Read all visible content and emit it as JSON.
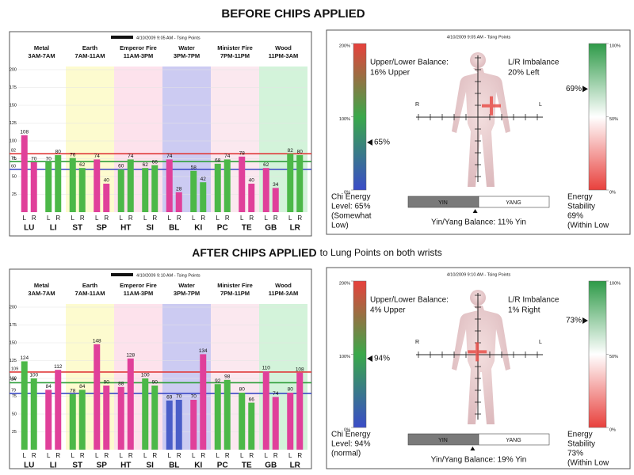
{
  "headings": [
    {
      "text": "BEFORE CHIPS APPLIED"
    },
    {
      "text": "AFTER CHIPS  APPLIED",
      "note": "to Lung Points on both wrists"
    }
  ],
  "chart_data": [
    {
      "type": "bar",
      "subtitle": "4/10/2009 9:05 AM - Tsing Points",
      "bands": [
        {
          "name": "Metal",
          "time": "3AM-7AM",
          "color": "#ffffff"
        },
        {
          "name": "Earth",
          "time": "7AM-11AM",
          "color": "#fdfbcf"
        },
        {
          "name": "Emperor Fire",
          "time": "11AM-3PM",
          "color": "#fde2ec"
        },
        {
          "name": "Water",
          "time": "3PM-7PM",
          "color": "#cccbf2"
        },
        {
          "name": "Minister Fire",
          "time": "7PM-11PM",
          "color": "#fbe8ef"
        },
        {
          "name": "Wood",
          "time": "11PM-3AM",
          "color": "#d3f3da"
        }
      ],
      "categories": [
        "LU",
        "LI",
        "ST",
        "SP",
        "HT",
        "SI",
        "BL",
        "KI",
        "PC",
        "TE",
        "GB",
        "LR"
      ],
      "series": [
        {
          "name": "L",
          "values": [
            108,
            70,
            76,
            74,
            60,
            62,
            74,
            58,
            68,
            78,
            62,
            82
          ],
          "colors": [
            "#e0409a",
            "#4cb848",
            "#4cb848",
            "#e0409a",
            "#4cb848",
            "#4cb848",
            "#e0409a",
            "#4cb848",
            "#4cb848",
            "#e0409a",
            "#e0409a",
            "#4cb848"
          ]
        },
        {
          "name": "R",
          "values": [
            70,
            80,
            62,
            40,
            74,
            66,
            28,
            42,
            74,
            40,
            34,
            80
          ],
          "colors": [
            "#e0409a",
            "#4cb848",
            "#4cb848",
            "#e0409a",
            "#4cb848",
            "#4cb848",
            "#e0409a",
            "#4cb848",
            "#4cb848",
            "#e0409a",
            "#e0409a",
            "#4cb848"
          ]
        }
      ],
      "reference_lines": [
        {
          "value": 82,
          "color": "#e03a3a"
        },
        {
          "value": 71,
          "color": "#2e9e3a"
        },
        {
          "value": 60,
          "color": "#3a48c4"
        }
      ],
      "ylim": [
        0,
        200
      ],
      "yticks": [
        25,
        50,
        75,
        100,
        125,
        150,
        175,
        200
      ],
      "grid": true
    },
    {
      "type": "bar",
      "subtitle": "4/10/2009 9:10 AM - Tsing Points",
      "bands": [
        {
          "name": "Metal",
          "time": "3AM-7AM",
          "color": "#ffffff"
        },
        {
          "name": "Earth",
          "time": "7AM-11AM",
          "color": "#fdfbcf"
        },
        {
          "name": "Emperor Fire",
          "time": "11AM-3PM",
          "color": "#fde2ec"
        },
        {
          "name": "Water",
          "time": "3PM-7PM",
          "color": "#cccbf2"
        },
        {
          "name": "Minister Fire",
          "time": "7PM-11PM",
          "color": "#fbe8ef"
        },
        {
          "name": "Wood",
          "time": "11PM-3AM",
          "color": "#d3f3da"
        }
      ],
      "categories": [
        "LU",
        "LI",
        "ST",
        "SP",
        "HT",
        "SI",
        "BL",
        "KI",
        "PC",
        "TE",
        "GB",
        "LR"
      ],
      "series": [
        {
          "name": "L",
          "values": [
            124,
            84,
            78,
            148,
            88,
            100,
            69,
            70,
            92,
            80,
            110,
            80
          ],
          "colors": [
            "#4cb848",
            "#e0409a",
            "#4cb848",
            "#e0409a",
            "#e0409a",
            "#4cb848",
            "#4a5ec8",
            "#e0409a",
            "#4cb848",
            "#4cb848",
            "#e0409a",
            "#e0409a"
          ]
        },
        {
          "name": "R",
          "values": [
            100,
            112,
            84,
            90,
            128,
            90,
            70,
            134,
            98,
            66,
            74,
            108
          ],
          "colors": [
            "#4cb848",
            "#e0409a",
            "#4cb848",
            "#e0409a",
            "#e0409a",
            "#4cb848",
            "#4a5ec8",
            "#e0409a",
            "#4cb848",
            "#4cb848",
            "#e0409a",
            "#e0409a"
          ]
        }
      ],
      "reference_lines": [
        {
          "value": 109,
          "color": "#e03a3a"
        },
        {
          "value": 94,
          "color": "#2e9e3a"
        },
        {
          "value": 79,
          "color": "#3a48c4"
        }
      ],
      "ylim": [
        0,
        200
      ],
      "yticks": [
        25,
        50,
        75,
        100,
        125,
        150,
        175,
        200
      ],
      "grid": true
    }
  ],
  "panels": [
    {
      "subtitle": "4/10/2009 9:05 AM - Tsing Points",
      "chi": {
        "lim": [
          0,
          200
        ],
        "ticks": [
          {
            "value": 200,
            "label": "200%"
          },
          {
            "value": 100,
            "label": "100%"
          },
          {
            "value": 0,
            "label": "0%"
          }
        ],
        "value": 65,
        "value_label": "65%",
        "lines": [
          "Chi Energy",
          "Level: 65%",
          "(Somewhat",
          "Low)"
        ]
      },
      "stability": {
        "lim": [
          0,
          100
        ],
        "ticks": [
          {
            "value": 100,
            "label": "100%"
          },
          {
            "value": 50,
            "label": "50%"
          },
          {
            "value": 0,
            "label": "0%"
          }
        ],
        "value": 69,
        "value_label": "69%",
        "lines": [
          "Energy",
          "Stability",
          "69%",
          "(Within Low"
        ]
      },
      "upper_lower": {
        "label": "Upper/Lower Balance:",
        "value": 16,
        "value_label": "16% Upper"
      },
      "lr": {
        "label": "L/R Imbalance",
        "value": 20,
        "value_label": "20%  Left"
      },
      "axis_left": "R",
      "axis_right": "L",
      "yin": "YIN",
      "yang": "YANG",
      "yinyang": {
        "value": 11,
        "value_label": "Yin/Yang Balance: 11% Yin"
      }
    },
    {
      "subtitle": "4/10/2009 9:10 AM - Tsing Points",
      "chi": {
        "lim": [
          0,
          200
        ],
        "ticks": [
          {
            "value": 200,
            "label": "200%"
          },
          {
            "value": 100,
            "label": "100%"
          },
          {
            "value": 0,
            "label": "0%"
          }
        ],
        "value": 94,
        "value_label": "94%",
        "lines": [
          "Chi Energy",
          "Level: 94%",
          "(normal)"
        ]
      },
      "stability": {
        "lim": [
          0,
          100
        ],
        "ticks": [
          {
            "value": 100,
            "label": "100%"
          },
          {
            "value": 50,
            "label": "50%"
          },
          {
            "value": 0,
            "label": "0%"
          }
        ],
        "value": 73,
        "value_label": "73%",
        "lines": [
          "Energy",
          "Stability",
          "73%",
          "(Within Low"
        ]
      },
      "upper_lower": {
        "label": "Upper/Lower Balance:",
        "value": 4,
        "value_label": "4% Upper"
      },
      "lr": {
        "label": "L/R Imbalance",
        "value": 1,
        "value_label": "1%  Right"
      },
      "axis_left": "R",
      "axis_right": "L",
      "yin": "YIN",
      "yang": "YANG",
      "yinyang": {
        "value": 19,
        "value_label": "Yin/Yang Balance: 19% Yin"
      }
    }
  ]
}
